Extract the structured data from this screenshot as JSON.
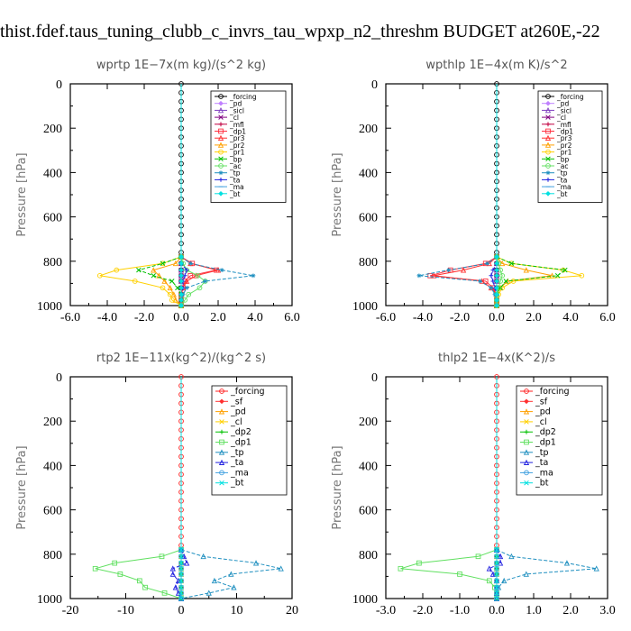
{
  "figure_title": "thist.fdef.taus_tuning_clubb_c_invrs_tau_wpxp_n2_threshm  BUDGET at260E,-22",
  "chart_data": [
    {
      "type": "line",
      "title": "wprtp   1E−7x(m kg)/(s^2 kg)",
      "ylabel": "Pressure [hPa]",
      "xlim": [
        -6,
        6
      ],
      "ylim": [
        1000,
        0
      ],
      "xticks": [
        "-6.0",
        "-4.0",
        "-2.0",
        "0.0",
        "2.0",
        "4.0",
        "6.0"
      ],
      "yticks": [
        "0",
        "200",
        "400",
        "600",
        "800",
        "1000"
      ],
      "y": [
        780,
        810,
        840,
        865,
        890,
        920,
        950,
        975,
        1000
      ],
      "series": [
        {
          "name": "_forcing",
          "color": "#000000",
          "values": [
            0,
            0,
            0,
            0,
            0,
            0,
            0,
            0,
            0
          ]
        },
        {
          "name": "_pd",
          "color": "#c080ff",
          "values": [
            0,
            0,
            0,
            0,
            0,
            0,
            0,
            0,
            0
          ]
        },
        {
          "name": "_sicl",
          "color": "#8040c0",
          "values": [
            0,
            0,
            0,
            0,
            0,
            0,
            0,
            0,
            0
          ]
        },
        {
          "name": "_cl",
          "color": "#800080",
          "values": [
            0,
            0,
            0,
            0,
            0,
            0,
            0,
            0,
            0
          ]
        },
        {
          "name": "_mfl",
          "color": "#c00040",
          "values": [
            0,
            0,
            0,
            0,
            0,
            0,
            0,
            0,
            0
          ]
        },
        {
          "name": "_dp1",
          "color": "#ff3040",
          "values": [
            0,
            0.6,
            1.9,
            0.5,
            0.2,
            0.1,
            0,
            0,
            0
          ]
        },
        {
          "name": "_pr3",
          "color": "#ff3030",
          "values": [
            0,
            0.5,
            2.0,
            0.8,
            0.3,
            0.1,
            0,
            0,
            0
          ]
        },
        {
          "name": "_pr2",
          "color": "#ffa000",
          "values": [
            0,
            -0.3,
            -1.5,
            -1.2,
            -0.9,
            -0.6,
            -0.4,
            -0.3,
            0
          ]
        },
        {
          "name": "_pr1",
          "color": "#ffd000",
          "values": [
            0,
            -1.0,
            -3.5,
            -4.4,
            -2.5,
            -1.0,
            -0.6,
            -0.5,
            0
          ]
        },
        {
          "name": "_bp",
          "color": "#00c000",
          "values": [
            0,
            -1.0,
            -2.3,
            -1.5,
            -0.5,
            -0.2,
            0,
            0,
            0
          ]
        },
        {
          "name": "_ac",
          "color": "#60e060",
          "values": [
            0,
            0.1,
            0.3,
            0.9,
            1.3,
            1.0,
            0.4,
            0.2,
            0
          ]
        },
        {
          "name": "_tp",
          "color": "#2090c0",
          "values": [
            0,
            0.5,
            2.2,
            3.9,
            1.3,
            0.3,
            0.1,
            0,
            0
          ]
        },
        {
          "name": "_ta",
          "color": "#2020e0",
          "values": [
            0,
            0,
            0.3,
            0.2,
            0.1,
            0.1,
            0,
            0,
            0
          ]
        },
        {
          "name": "_ma",
          "color": "#40a0e0",
          "values": [
            0,
            0,
            0,
            0,
            0,
            0,
            0,
            0,
            0
          ]
        },
        {
          "name": "_bt",
          "color": "#00e0e0",
          "values": [
            0,
            0,
            0,
            0,
            0,
            0,
            0,
            0,
            0
          ]
        }
      ]
    },
    {
      "type": "line",
      "title": "wpthlp   1E−4x(m K)/s^2",
      "ylabel": "Pressure [hPa]",
      "xlim": [
        -6,
        6
      ],
      "ylim": [
        1000,
        0
      ],
      "xticks": [
        "-6.0",
        "-4.0",
        "-2.0",
        "0.0",
        "2.0",
        "4.0",
        "6.0"
      ],
      "yticks": [
        "0",
        "200",
        "400",
        "600",
        "800",
        "1000"
      ],
      "y": [
        780,
        810,
        840,
        865,
        890,
        920,
        950,
        975,
        1000
      ],
      "series": [
        {
          "name": "_forcing",
          "color": "#000000",
          "values": [
            0,
            0,
            0,
            0,
            0,
            0,
            0,
            0,
            0
          ]
        },
        {
          "name": "_pd",
          "color": "#c080ff",
          "values": [
            0,
            0,
            0,
            0,
            0,
            0,
            0,
            0,
            0
          ]
        },
        {
          "name": "_sicl",
          "color": "#8040c0",
          "values": [
            0,
            0,
            0,
            0,
            0,
            0,
            0,
            0,
            0
          ]
        },
        {
          "name": "_cl",
          "color": "#800080",
          "values": [
            0,
            0,
            0,
            0,
            0,
            0,
            0,
            0,
            0
          ]
        },
        {
          "name": "_mfl",
          "color": "#c00040",
          "values": [
            0,
            0,
            0,
            0,
            0,
            0,
            0,
            0,
            0
          ]
        },
        {
          "name": "_dp1",
          "color": "#ff3040",
          "values": [
            0,
            -0.6,
            -2.5,
            -3.6,
            -0.6,
            -0.2,
            0,
            0,
            0
          ]
        },
        {
          "name": "_pr3",
          "color": "#ff3030",
          "values": [
            0,
            -0.4,
            -1.8,
            -3.4,
            -0.8,
            -0.3,
            0,
            0,
            0
          ]
        },
        {
          "name": "_pr2",
          "color": "#ffa000",
          "values": [
            0,
            0.3,
            1.6,
            3.0,
            0.6,
            0.2,
            0,
            0,
            0
          ]
        },
        {
          "name": "_pr1",
          "color": "#ffd000",
          "values": [
            0,
            0.8,
            3.6,
            4.6,
            0.9,
            0.3,
            0.1,
            0,
            0
          ]
        },
        {
          "name": "_bp",
          "color": "#00c000",
          "values": [
            0,
            0.8,
            3.7,
            3.3,
            0.5,
            0.2,
            0,
            0,
            0
          ]
        },
        {
          "name": "_ac",
          "color": "#60e060",
          "values": [
            0,
            0.1,
            0.2,
            0.3,
            0.2,
            0.1,
            0,
            0,
            0
          ]
        },
        {
          "name": "_tp",
          "color": "#2090c0",
          "values": [
            0,
            -0.5,
            -2.6,
            -4.2,
            -0.9,
            -0.3,
            -0.1,
            0,
            0
          ]
        },
        {
          "name": "_ta",
          "color": "#2020e0",
          "values": [
            0,
            0,
            -0.2,
            -0.3,
            -0.2,
            -0.1,
            0,
            0,
            0
          ]
        },
        {
          "name": "_ma",
          "color": "#40a0e0",
          "values": [
            0,
            0,
            0,
            0,
            0,
            0,
            0,
            0,
            0
          ]
        },
        {
          "name": "_bt",
          "color": "#00e0e0",
          "values": [
            0,
            0,
            0,
            0,
            0,
            0,
            0,
            0,
            0
          ]
        }
      ]
    },
    {
      "type": "line",
      "title": "rtp2   1E−11x(kg^2)/(kg^2 s)",
      "ylabel": "Pressure [hPa]",
      "xlim": [
        -20,
        20
      ],
      "ylim": [
        1000,
        0
      ],
      "xticks": [
        "-20",
        "-10",
        "0",
        "10",
        "20"
      ],
      "yticks": [
        "0",
        "200",
        "400",
        "600",
        "800",
        "1000"
      ],
      "y": [
        780,
        810,
        840,
        865,
        890,
        920,
        950,
        975,
        1000
      ],
      "series": [
        {
          "name": "_forcing",
          "color": "#ff2020",
          "values": [
            0,
            0,
            0,
            0,
            0,
            0,
            0,
            0,
            0
          ]
        },
        {
          "name": "_sf",
          "color": "#ff3030",
          "values": [
            0,
            0,
            0,
            0,
            0,
            0,
            0,
            0,
            0
          ]
        },
        {
          "name": "_pd",
          "color": "#ffa000",
          "values": [
            0,
            0,
            0,
            0,
            0,
            0,
            0,
            0,
            0
          ]
        },
        {
          "name": "_cl",
          "color": "#ffd000",
          "values": [
            0,
            0,
            0,
            0,
            0,
            0,
            0,
            0,
            0
          ]
        },
        {
          "name": "_dp2",
          "color": "#00c000",
          "values": [
            0,
            0,
            0,
            0,
            0,
            0,
            0,
            0,
            0
          ]
        },
        {
          "name": "_dp1",
          "color": "#60e060",
          "values": [
            0,
            -3.5,
            -12.0,
            -15.5,
            -11.0,
            -7.5,
            -6.5,
            -3.0,
            0
          ]
        },
        {
          "name": "_tp",
          "color": "#2090c0",
          "values": [
            0,
            4.0,
            13.5,
            18.0,
            9.0,
            6.0,
            9.5,
            5.0,
            0
          ]
        },
        {
          "name": "_ta",
          "color": "#2020e0",
          "values": [
            0,
            0.5,
            1.0,
            -1.5,
            -1.5,
            -0.5,
            -1.0,
            -0.5,
            0
          ]
        },
        {
          "name": "_ma",
          "color": "#40a0e0",
          "values": [
            0,
            0,
            0,
            0,
            0,
            0,
            0,
            0,
            0
          ]
        },
        {
          "name": "_bt",
          "color": "#00e0e0",
          "values": [
            0,
            0,
            0,
            0,
            0,
            0,
            0,
            0,
            0
          ]
        }
      ]
    },
    {
      "type": "line",
      "title": "thlp2   1E−4x(K^2)/s",
      "ylabel": "Pressure [hPa]",
      "xlim": [
        -3,
        3
      ],
      "ylim": [
        1000,
        0
      ],
      "xticks": [
        "-3.0",
        "-2.0",
        "-1.0",
        "0.0",
        "1.0",
        "2.0",
        "3.0"
      ],
      "yticks": [
        "0",
        "200",
        "400",
        "600",
        "800",
        "1000"
      ],
      "y": [
        780,
        810,
        840,
        865,
        890,
        920,
        950,
        975,
        1000
      ],
      "series": [
        {
          "name": "_forcing",
          "color": "#ff2020",
          "values": [
            0,
            0,
            0,
            0,
            0,
            0,
            0,
            0,
            0
          ]
        },
        {
          "name": "_sf",
          "color": "#ff3030",
          "values": [
            0,
            0,
            0,
            0,
            0,
            0,
            0,
            0,
            0
          ]
        },
        {
          "name": "_pd",
          "color": "#ffa000",
          "values": [
            0,
            0,
            0,
            0,
            0,
            0,
            0,
            0,
            0
          ]
        },
        {
          "name": "_cl",
          "color": "#ffd000",
          "values": [
            0,
            0,
            0,
            0,
            0,
            0,
            0,
            0,
            0
          ]
        },
        {
          "name": "_dp2",
          "color": "#00c000",
          "values": [
            0,
            0,
            0,
            0,
            0,
            0,
            0,
            0,
            0
          ]
        },
        {
          "name": "_dp1",
          "color": "#60e060",
          "values": [
            0,
            -0.5,
            -2.1,
            -2.6,
            -1.0,
            -0.2,
            -0.05,
            0,
            0
          ]
        },
        {
          "name": "_tp",
          "color": "#2090c0",
          "values": [
            0,
            0.4,
            1.9,
            2.7,
            0.8,
            0.2,
            0.05,
            0,
            0
          ]
        },
        {
          "name": "_ta",
          "color": "#2020e0",
          "values": [
            0,
            0.1,
            0.1,
            -0.2,
            -0.1,
            0,
            0,
            0,
            0
          ]
        },
        {
          "name": "_ma",
          "color": "#40a0e0",
          "values": [
            0,
            0,
            0,
            0,
            0,
            0,
            0,
            0,
            0
          ]
        },
        {
          "name": "_bt",
          "color": "#00e0e0",
          "values": [
            0,
            0,
            0,
            0,
            0,
            0,
            0,
            0,
            0
          ]
        }
      ]
    }
  ]
}
